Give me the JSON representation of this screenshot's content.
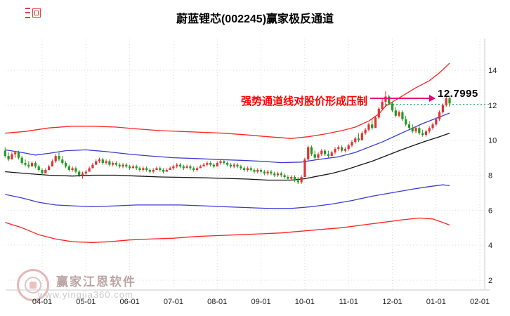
{
  "title": "蔚蓝锂芯(002245)赢家极反通道",
  "watermark": {
    "brand": "赢家江恩软件",
    "site": "www.yingjia360.com"
  },
  "chart_data": {
    "type": "candlestick",
    "title": "蔚蓝锂芯(002245)赢家极反通道",
    "y_ticks": [
      2,
      4,
      6,
      8,
      10,
      12,
      14
    ],
    "ylim": [
      1.5,
      15.5
    ],
    "grid": true,
    "legend": "none",
    "x_tick_labels": [
      "04-01",
      "05-01",
      "06-01",
      "07-01",
      "08-01",
      "09-01",
      "10-01",
      "11-01",
      "12-01",
      "01-01",
      "02-01"
    ],
    "x_map": {
      "first_tick_candle_index": 11,
      "candles_per_month": 13
    },
    "colors": {
      "up": "#e03232",
      "down": "#229a22",
      "channel_red": "#ff2222",
      "channel_blue": "#3b3bd0",
      "channel_mid": "#151515",
      "target_line": "#00a050",
      "arrow": "#e6007d",
      "annotation_text": "#ff0000",
      "grid": "#d9d9d9",
      "frame": "#c8c8c8",
      "axis_text": "#222222"
    },
    "annotation": {
      "pressure_text": "强势通道线对股价形成压制",
      "price_label": "12.7995"
    },
    "target_line": {
      "level": 12.05,
      "from_index": 112
    },
    "channels": [
      {
        "name": "upper-outer-red",
        "color": "#ff2222",
        "points": [
          [
            0,
            10.4
          ],
          [
            6,
            10.5
          ],
          [
            13,
            10.7
          ],
          [
            20,
            10.8
          ],
          [
            26,
            10.8
          ],
          [
            33,
            10.75
          ],
          [
            39,
            10.65
          ],
          [
            46,
            10.55
          ],
          [
            52,
            10.5
          ],
          [
            59,
            10.45
          ],
          [
            65,
            10.4
          ],
          [
            72,
            10.3
          ],
          [
            78,
            10.2
          ],
          [
            85,
            10.1
          ],
          [
            90,
            10.2
          ],
          [
            95,
            10.35
          ],
          [
            100,
            10.55
          ],
          [
            104,
            10.75
          ],
          [
            108,
            11.1
          ],
          [
            111,
            11.5
          ],
          [
            113,
            11.95
          ],
          [
            116,
            12.3
          ],
          [
            119,
            12.65
          ],
          [
            122,
            13.0
          ],
          [
            126,
            13.4
          ],
          [
            129,
            13.85
          ],
          [
            132,
            14.4
          ]
        ]
      },
      {
        "name": "upper-inner-blue",
        "color": "#3b3bd0",
        "points": [
          [
            0,
            9.45
          ],
          [
            5,
            9.3
          ],
          [
            9,
            9.15
          ],
          [
            13,
            9.25
          ],
          [
            18,
            9.4
          ],
          [
            24,
            9.45
          ],
          [
            30,
            9.35
          ],
          [
            37,
            9.2
          ],
          [
            43,
            9.1
          ],
          [
            50,
            9.0
          ],
          [
            57,
            8.95
          ],
          [
            63,
            8.9
          ],
          [
            70,
            8.85
          ],
          [
            76,
            8.8
          ],
          [
            82,
            8.72
          ],
          [
            88,
            8.75
          ],
          [
            93,
            8.9
          ],
          [
            99,
            9.05
          ],
          [
            104,
            9.3
          ],
          [
            108,
            9.6
          ],
          [
            112,
            9.9
          ],
          [
            116,
            10.25
          ],
          [
            120,
            10.6
          ],
          [
            124,
            10.95
          ],
          [
            128,
            11.25
          ],
          [
            132,
            11.55
          ]
        ]
      },
      {
        "name": "mid-black",
        "color": "#151515",
        "points": [
          [
            0,
            8.2
          ],
          [
            6,
            8.1
          ],
          [
            13,
            8.0
          ],
          [
            20,
            7.95
          ],
          [
            26,
            8.0
          ],
          [
            33,
            8.0
          ],
          [
            39,
            7.95
          ],
          [
            46,
            7.9
          ],
          [
            52,
            7.88
          ],
          [
            59,
            7.85
          ],
          [
            65,
            7.82
          ],
          [
            72,
            7.78
          ],
          [
            78,
            7.72
          ],
          [
            85,
            7.72
          ],
          [
            89,
            7.8
          ],
          [
            93,
            7.95
          ],
          [
            97,
            8.1
          ],
          [
            101,
            8.3
          ],
          [
            105,
            8.55
          ],
          [
            109,
            8.8
          ],
          [
            113,
            9.1
          ],
          [
            117,
            9.4
          ],
          [
            121,
            9.68
          ],
          [
            125,
            9.95
          ],
          [
            129,
            10.2
          ],
          [
            132,
            10.4
          ]
        ]
      },
      {
        "name": "lower-inner-blue",
        "color": "#3b3bd0",
        "points": [
          [
            0,
            6.9
          ],
          [
            5,
            6.7
          ],
          [
            10,
            6.45
          ],
          [
            15,
            6.3
          ],
          [
            20,
            6.25
          ],
          [
            26,
            6.2
          ],
          [
            33,
            6.25
          ],
          [
            39,
            6.3
          ],
          [
            46,
            6.3
          ],
          [
            52,
            6.3
          ],
          [
            59,
            6.25
          ],
          [
            65,
            6.2
          ],
          [
            72,
            6.15
          ],
          [
            78,
            6.1
          ],
          [
            85,
            6.1
          ],
          [
            91,
            6.2
          ],
          [
            97,
            6.35
          ],
          [
            103,
            6.55
          ],
          [
            109,
            6.8
          ],
          [
            115,
            7.0
          ],
          [
            121,
            7.2
          ],
          [
            126,
            7.35
          ],
          [
            130,
            7.45
          ],
          [
            132,
            7.4
          ]
        ]
      },
      {
        "name": "lower-outer-red",
        "color": "#ff2222",
        "points": [
          [
            0,
            5.3
          ],
          [
            5,
            5.0
          ],
          [
            10,
            4.6
          ],
          [
            15,
            4.35
          ],
          [
            20,
            4.2
          ],
          [
            26,
            4.15
          ],
          [
            31,
            4.2
          ],
          [
            37,
            4.3
          ],
          [
            43,
            4.35
          ],
          [
            50,
            4.4
          ],
          [
            57,
            4.5
          ],
          [
            63,
            4.55
          ],
          [
            70,
            4.6
          ],
          [
            76,
            4.65
          ],
          [
            82,
            4.7
          ],
          [
            88,
            4.8
          ],
          [
            94,
            4.9
          ],
          [
            100,
            5.0
          ],
          [
            106,
            5.15
          ],
          [
            112,
            5.3
          ],
          [
            118,
            5.45
          ],
          [
            123,
            5.55
          ],
          [
            127,
            5.5
          ],
          [
            130,
            5.3
          ],
          [
            132,
            5.15
          ]
        ]
      }
    ],
    "candles_ohlc": [
      [
        9.4,
        9.6,
        9.0,
        9.1
      ],
      [
        9.1,
        9.3,
        8.8,
        8.9
      ],
      [
        8.9,
        9.3,
        8.9,
        9.2
      ],
      [
        9.2,
        9.4,
        9.0,
        9.3
      ],
      [
        9.3,
        9.4,
        8.9,
        9.0
      ],
      [
        9.0,
        9.1,
        8.6,
        8.7
      ],
      [
        8.7,
        8.9,
        8.5,
        8.6
      ],
      [
        8.6,
        8.8,
        8.4,
        8.5
      ],
      [
        8.5,
        8.8,
        8.5,
        8.7
      ],
      [
        8.7,
        8.8,
        8.4,
        8.5
      ],
      [
        8.5,
        8.6,
        8.2,
        8.3
      ],
      [
        8.3,
        8.4,
        8.0,
        8.1
      ],
      [
        8.1,
        8.4,
        8.1,
        8.3
      ],
      [
        8.3,
        8.6,
        8.3,
        8.5
      ],
      [
        8.5,
        8.9,
        8.5,
        8.8
      ],
      [
        8.8,
        9.2,
        8.7,
        9.1
      ],
      [
        9.1,
        9.3,
        8.8,
        8.9
      ],
      [
        8.9,
        9.1,
        8.6,
        8.7
      ],
      [
        8.7,
        8.8,
        8.4,
        8.5
      ],
      [
        8.5,
        8.6,
        8.2,
        8.3
      ],
      [
        8.3,
        8.5,
        8.2,
        8.4
      ],
      [
        8.4,
        8.5,
        8.1,
        8.2
      ],
      [
        8.2,
        8.3,
        7.9,
        8.0
      ],
      [
        8.0,
        8.2,
        7.8,
        8.1
      ],
      [
        8.1,
        8.3,
        8.0,
        8.2
      ],
      [
        8.2,
        8.5,
        8.2,
        8.4
      ],
      [
        8.4,
        8.7,
        8.4,
        8.6
      ],
      [
        8.6,
        8.9,
        8.6,
        8.8
      ],
      [
        8.8,
        9.0,
        8.7,
        8.9
      ],
      [
        8.9,
        9.0,
        8.6,
        8.7
      ],
      [
        8.7,
        8.9,
        8.6,
        8.8
      ],
      [
        8.8,
        8.9,
        8.5,
        8.6
      ],
      [
        8.6,
        8.8,
        8.5,
        8.7
      ],
      [
        8.7,
        8.8,
        8.5,
        8.6
      ],
      [
        8.6,
        8.7,
        8.4,
        8.5
      ],
      [
        8.5,
        8.7,
        8.4,
        8.6
      ],
      [
        8.6,
        8.7,
        8.4,
        8.5
      ],
      [
        8.5,
        8.6,
        8.3,
        8.4
      ],
      [
        8.4,
        8.6,
        8.4,
        8.5
      ],
      [
        8.5,
        8.6,
        8.3,
        8.4
      ],
      [
        8.4,
        8.5,
        8.2,
        8.3
      ],
      [
        8.3,
        8.5,
        8.2,
        8.4
      ],
      [
        8.4,
        8.5,
        8.2,
        8.3
      ],
      [
        8.3,
        8.4,
        8.1,
        8.2
      ],
      [
        8.2,
        8.4,
        8.1,
        8.3
      ],
      [
        8.3,
        8.5,
        8.3,
        8.4
      ],
      [
        8.4,
        8.5,
        8.2,
        8.3
      ],
      [
        8.3,
        8.4,
        8.1,
        8.2
      ],
      [
        8.2,
        8.4,
        8.2,
        8.3
      ],
      [
        8.3,
        8.5,
        8.3,
        8.4
      ],
      [
        8.4,
        8.6,
        8.3,
        8.5
      ],
      [
        8.5,
        8.7,
        8.4,
        8.6
      ],
      [
        8.6,
        8.7,
        8.4,
        8.5
      ],
      [
        8.5,
        8.6,
        8.3,
        8.4
      ],
      [
        8.4,
        8.6,
        8.4,
        8.5
      ],
      [
        8.5,
        8.6,
        8.3,
        8.4
      ],
      [
        8.4,
        8.5,
        8.2,
        8.3
      ],
      [
        8.3,
        8.5,
        8.2,
        8.4
      ],
      [
        8.4,
        8.6,
        8.4,
        8.5
      ],
      [
        8.5,
        8.7,
        8.5,
        8.6
      ],
      [
        8.6,
        8.8,
        8.5,
        8.7
      ],
      [
        8.7,
        8.8,
        8.5,
        8.6
      ],
      [
        8.6,
        8.7,
        8.4,
        8.5
      ],
      [
        8.5,
        8.8,
        8.5,
        8.7
      ],
      [
        8.7,
        8.9,
        8.6,
        8.8
      ],
      [
        8.8,
        8.9,
        8.6,
        8.7
      ],
      [
        8.7,
        8.8,
        8.5,
        8.6
      ],
      [
        8.6,
        8.7,
        8.4,
        8.5
      ],
      [
        8.5,
        8.7,
        8.4,
        8.6
      ],
      [
        8.6,
        8.7,
        8.4,
        8.5
      ],
      [
        8.5,
        8.6,
        8.3,
        8.4
      ],
      [
        8.4,
        8.5,
        8.2,
        8.3
      ],
      [
        8.3,
        8.5,
        8.2,
        8.4
      ],
      [
        8.4,
        8.5,
        8.2,
        8.3
      ],
      [
        8.3,
        8.4,
        8.1,
        8.2
      ],
      [
        8.2,
        8.4,
        8.1,
        8.3
      ],
      [
        8.3,
        8.4,
        8.1,
        8.2
      ],
      [
        8.2,
        8.3,
        8.0,
        8.1
      ],
      [
        8.1,
        8.3,
        8.0,
        8.2
      ],
      [
        8.2,
        8.3,
        8.0,
        8.1
      ],
      [
        8.1,
        8.2,
        7.9,
        8.0
      ],
      [
        8.0,
        8.2,
        7.9,
        8.1
      ],
      [
        8.1,
        8.2,
        7.9,
        8.0
      ],
      [
        8.0,
        8.1,
        7.8,
        7.9
      ],
      [
        7.9,
        8.0,
        7.7,
        7.8
      ],
      [
        7.8,
        8.0,
        7.7,
        7.9
      ],
      [
        7.9,
        8.0,
        7.6,
        7.7
      ],
      [
        7.7,
        7.9,
        7.5,
        7.6
      ],
      [
        7.6,
        8.0,
        7.5,
        7.9
      ],
      [
        7.9,
        9.0,
        7.9,
        8.9
      ],
      [
        8.9,
        9.7,
        8.8,
        9.6
      ],
      [
        9.6,
        9.7,
        9.1,
        9.2
      ],
      [
        9.2,
        9.4,
        8.9,
        9.0
      ],
      [
        9.0,
        9.3,
        8.9,
        9.2
      ],
      [
        9.2,
        9.5,
        9.1,
        9.4
      ],
      [
        9.4,
        9.5,
        9.1,
        9.2
      ],
      [
        9.2,
        9.4,
        9.0,
        9.1
      ],
      [
        9.1,
        9.4,
        9.1,
        9.3
      ],
      [
        9.3,
        9.6,
        9.2,
        9.5
      ],
      [
        9.5,
        9.7,
        9.4,
        9.6
      ],
      [
        9.6,
        9.7,
        9.3,
        9.4
      ],
      [
        9.4,
        9.6,
        9.3,
        9.5
      ],
      [
        9.5,
        9.8,
        9.4,
        9.7
      ],
      [
        9.7,
        10.0,
        9.6,
        9.9
      ],
      [
        9.9,
        10.2,
        9.8,
        10.1
      ],
      [
        10.1,
        10.4,
        9.9,
        10.0
      ],
      [
        10.0,
        10.5,
        10.0,
        10.4
      ],
      [
        10.4,
        10.7,
        10.3,
        10.6
      ],
      [
        10.6,
        11.0,
        10.5,
        10.9
      ],
      [
        10.9,
        11.2,
        10.6,
        10.7
      ],
      [
        10.7,
        11.4,
        10.7,
        11.3
      ],
      [
        11.3,
        11.9,
        11.2,
        11.8
      ],
      [
        11.8,
        12.4,
        11.7,
        12.2
      ],
      [
        12.2,
        12.8,
        11.9,
        12.5
      ],
      [
        12.5,
        12.6,
        12.0,
        12.1
      ],
      [
        12.1,
        12.2,
        11.6,
        11.7
      ],
      [
        11.7,
        11.9,
        11.3,
        11.4
      ],
      [
        11.4,
        11.7,
        11.3,
        11.6
      ],
      [
        11.6,
        11.7,
        11.1,
        11.2
      ],
      [
        11.2,
        11.4,
        10.8,
        10.9
      ],
      [
        10.9,
        11.1,
        10.6,
        10.7
      ],
      [
        10.7,
        10.9,
        10.4,
        10.5
      ],
      [
        10.5,
        10.8,
        10.4,
        10.7
      ],
      [
        10.7,
        10.8,
        10.3,
        10.4
      ],
      [
        10.4,
        10.6,
        10.2,
        10.3
      ],
      [
        10.3,
        10.6,
        10.2,
        10.5
      ],
      [
        10.5,
        10.8,
        10.4,
        10.7
      ],
      [
        10.7,
        11.0,
        10.6,
        10.9
      ],
      [
        10.9,
        11.3,
        10.8,
        11.2
      ],
      [
        11.2,
        11.7,
        11.1,
        11.6
      ],
      [
        11.6,
        12.1,
        11.5,
        12.0
      ],
      [
        12.0,
        12.5,
        11.9,
        12.4
      ],
      [
        12.4,
        12.5,
        11.9,
        12.1
      ]
    ]
  }
}
